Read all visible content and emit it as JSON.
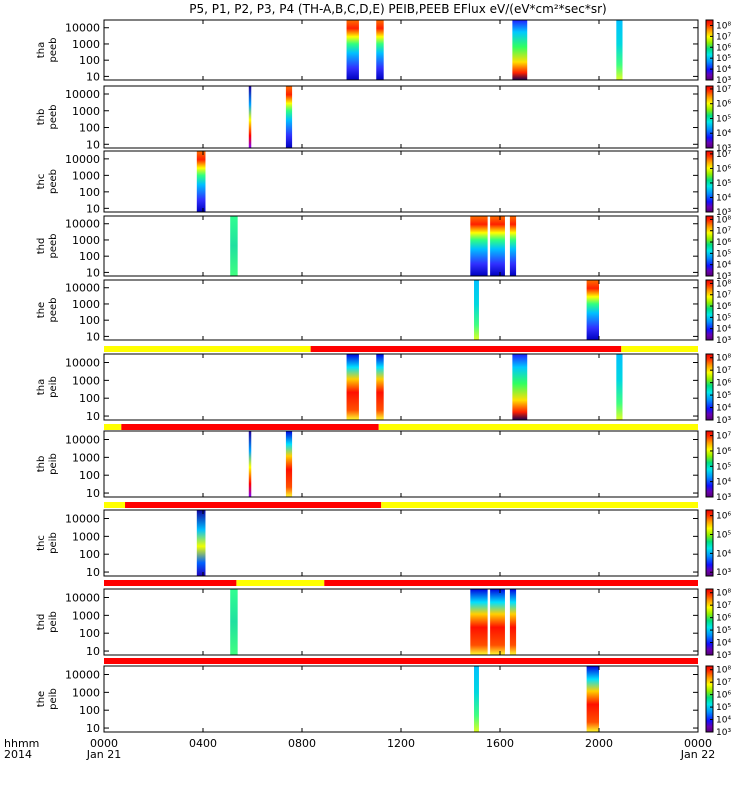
{
  "title": "P5, P1, P2, P3, P4 (TH-A,B,C,D,E) PEIB,PEEB EFlux eV/(eV*cm²*sec*sr)",
  "chart_data": {
    "type": "heatmap",
    "time_range_hours": [
      0,
      24
    ],
    "x_ticks": [
      {
        "hour": 0,
        "label": "0000",
        "sub": "Jan 21"
      },
      {
        "hour": 4,
        "label": "0400",
        "sub": ""
      },
      {
        "hour": 8,
        "label": "0800",
        "sub": ""
      },
      {
        "hour": 12,
        "label": "1200",
        "sub": ""
      },
      {
        "hour": 16,
        "label": "1600",
        "sub": ""
      },
      {
        "hour": 20,
        "label": "2000",
        "sub": ""
      },
      {
        "hour": 24,
        "label": "0000",
        "sub": "Jan 22"
      }
    ],
    "x_label": {
      "line1": "hhmm",
      "line2": "2014"
    },
    "y_scale": "log",
    "y_range_eV": [
      6,
      30000
    ],
    "y_ticks": [
      "10",
      "100",
      "1000",
      "10000"
    ],
    "panels": [
      {
        "probe": "tha",
        "product": "peeb",
        "cbar_ticks": [
          "10³",
          "10⁴",
          "10⁵",
          "10⁶",
          "10⁷",
          "10⁸"
        ],
        "cbar_range": [
          3,
          8.5
        ],
        "bursts": [
          {
            "start": 9.8,
            "end": 10.3,
            "style": "peeb_hot"
          },
          {
            "start": 11.0,
            "end": 11.3,
            "style": "peeb_hot"
          },
          {
            "start": 16.5,
            "end": 17.1,
            "style": "mixed"
          },
          {
            "start": 20.7,
            "end": 20.95,
            "style": "cyan_green"
          }
        ]
      },
      {
        "probe": "thb",
        "product": "peeb",
        "cbar_ticks": [
          "10³",
          "10⁴",
          "10⁵",
          "10⁶",
          "10⁷"
        ],
        "cbar_range": [
          3,
          7.2
        ],
        "bursts": [
          {
            "start": 5.85,
            "end": 5.95,
            "style": "narrow_hot"
          },
          {
            "start": 7.35,
            "end": 7.6,
            "style": "peeb_hot"
          }
        ]
      },
      {
        "probe": "thc",
        "product": "peeb",
        "cbar_ticks": [
          "10³",
          "10⁴",
          "10⁵",
          "10⁶",
          "10⁷"
        ],
        "cbar_range": [
          3,
          7.2
        ],
        "bursts": [
          {
            "start": 3.75,
            "end": 4.1,
            "style": "peeb_hot"
          }
        ]
      },
      {
        "probe": "thd",
        "product": "peeb",
        "cbar_ticks": [
          "10³",
          "10⁴",
          "10⁵",
          "10⁶",
          "10⁷",
          "10⁸"
        ],
        "cbar_range": [
          3,
          8.3
        ],
        "bursts": [
          {
            "start": 5.1,
            "end": 5.4,
            "style": "green_band"
          },
          {
            "start": 14.8,
            "end": 15.5,
            "style": "peeb_hot"
          },
          {
            "start": 15.6,
            "end": 16.2,
            "style": "peeb_hot"
          },
          {
            "start": 16.4,
            "end": 16.65,
            "style": "peeb_hot"
          }
        ]
      },
      {
        "probe": "the",
        "product": "peeb",
        "cbar_ticks": [
          "10³",
          "10⁴",
          "10⁵",
          "10⁶",
          "10⁷",
          "10⁸"
        ],
        "cbar_range": [
          3,
          8.3
        ],
        "bursts": [
          {
            "start": 14.95,
            "end": 15.15,
            "style": "cyan_green"
          },
          {
            "start": 19.5,
            "end": 20.0,
            "style": "peeb_hot"
          }
        ]
      },
      {
        "probe": "tha",
        "product": "peib",
        "cbar_ticks": [
          "10³",
          "10⁴",
          "10⁵",
          "10⁶",
          "10⁷",
          "10⁸"
        ],
        "cbar_range": [
          3,
          8.3
        ],
        "bursts": [
          {
            "start": 9.8,
            "end": 10.3,
            "style": "peib_hot"
          },
          {
            "start": 11.0,
            "end": 11.3,
            "style": "peib_hot"
          },
          {
            "start": 16.5,
            "end": 17.1,
            "style": "mixed"
          },
          {
            "start": 20.7,
            "end": 20.95,
            "style": "cyan_green"
          }
        ]
      },
      {
        "probe": "thb",
        "product": "peib",
        "cbar_ticks": [
          "10³",
          "10⁴",
          "10⁵",
          "10⁶",
          "10⁷"
        ],
        "cbar_range": [
          3,
          7.3
        ],
        "bursts": [
          {
            "start": 5.85,
            "end": 5.95,
            "style": "narrow_hot"
          },
          {
            "start": 7.35,
            "end": 7.6,
            "style": "peib_hot"
          }
        ]
      },
      {
        "probe": "thc",
        "product": "peib",
        "cbar_ticks": [
          "10³",
          "10⁴",
          "10⁵",
          "10⁶"
        ],
        "cbar_range": [
          2.8,
          6.3
        ],
        "bursts": [
          {
            "start": 3.75,
            "end": 4.1,
            "style": "blue_yellow"
          }
        ]
      },
      {
        "probe": "thd",
        "product": "peib",
        "cbar_ticks": [
          "10³",
          "10⁴",
          "10⁵",
          "10⁶",
          "10⁷",
          "10⁸"
        ],
        "cbar_range": [
          3,
          8.3
        ],
        "bursts": [
          {
            "start": 5.1,
            "end": 5.4,
            "style": "green_band"
          },
          {
            "start": 14.8,
            "end": 15.5,
            "style": "peib_hot"
          },
          {
            "start": 15.6,
            "end": 16.2,
            "style": "peib_hot"
          },
          {
            "start": 16.4,
            "end": 16.65,
            "style": "peib_hot"
          }
        ]
      },
      {
        "probe": "the",
        "product": "peib",
        "cbar_ticks": [
          "10³",
          "10⁴",
          "10⁵",
          "10⁶",
          "10⁷",
          "10⁸"
        ],
        "cbar_range": [
          3,
          8.3
        ],
        "bursts": [
          {
            "start": 14.95,
            "end": 15.15,
            "style": "cyan_green"
          },
          {
            "start": 19.5,
            "end": 20.0,
            "style": "peib_hot"
          }
        ]
      }
    ],
    "mode_bars": [
      {
        "before_panel": 5,
        "segments": [
          {
            "start": 0,
            "end": 8.35,
            "color": "#ffff00"
          },
          {
            "start": 8.35,
            "end": 20.9,
            "color": "#ff0000"
          },
          {
            "start": 20.9,
            "end": 24,
            "color": "#ffff00"
          }
        ]
      },
      {
        "before_panel": 6,
        "segments": [
          {
            "start": 0,
            "end": 0.7,
            "color": "#ffff00"
          },
          {
            "start": 0.7,
            "end": 11.1,
            "color": "#ff0000"
          },
          {
            "start": 11.1,
            "end": 24,
            "color": "#ffff00"
          }
        ]
      },
      {
        "before_panel": 7,
        "segments": [
          {
            "start": 0,
            "end": 0.85,
            "color": "#ffff00"
          },
          {
            "start": 0.85,
            "end": 11.2,
            "color": "#ff0000"
          },
          {
            "start": 11.2,
            "end": 24,
            "color": "#ffff00"
          }
        ]
      },
      {
        "before_panel": 8,
        "segments": [
          {
            "start": 0,
            "end": 5.35,
            "color": "#ff0000"
          },
          {
            "start": 5.35,
            "end": 8.9,
            "color": "#ffff00"
          },
          {
            "start": 8.9,
            "end": 24,
            "color": "#ff0000"
          }
        ]
      },
      {
        "before_panel": 9,
        "segments": [
          {
            "start": 0,
            "end": 24,
            "color": "#ff0000"
          }
        ]
      }
    ]
  }
}
